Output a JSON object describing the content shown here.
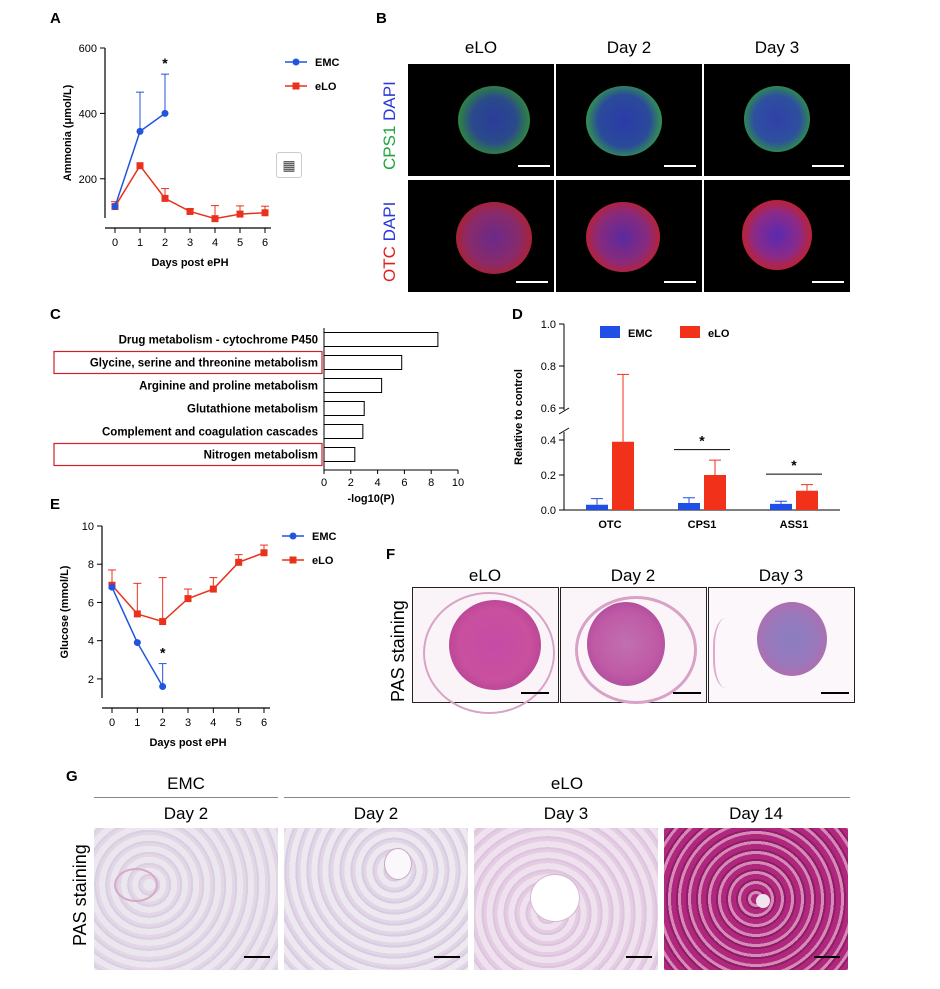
{
  "panelA": {
    "label": "A",
    "ylabel": "Ammonia (μmol/L)",
    "xlabel": "Days post ePH",
    "star": "*",
    "legend": [
      "EMC",
      "eLO"
    ]
  },
  "panelB": {
    "label": "B",
    "columns": [
      "eLO",
      "Day 2",
      "Day 3"
    ],
    "row1": {
      "stain1": "CPS1",
      "stain2": "DAPI"
    },
    "row2": {
      "stain1": "OTC",
      "stain2": "DAPI"
    }
  },
  "panelC": {
    "label": "C",
    "xlabel": "-log10(P)"
  },
  "panelD": {
    "label": "D",
    "ylabel": "Relative to control",
    "legend": [
      "EMC",
      "eLO"
    ],
    "star": "*"
  },
  "panelE": {
    "label": "E",
    "ylabel": "Glucose (mmol/L)",
    "xlabel": "Days post ePH",
    "star": "*",
    "legend": [
      "EMC",
      "eLO"
    ]
  },
  "panelF": {
    "label": "F",
    "columns": [
      "eLO",
      "Day 2",
      "Day 3"
    ],
    "rowlabel": "PAS staining"
  },
  "panelG": {
    "label": "G",
    "group1": "EMC",
    "group2": "eLO",
    "columns": [
      "Day 2",
      "Day 2",
      "Day 3",
      "Day 14"
    ],
    "rowlabel": "PAS staining"
  },
  "chart_data": [
    {
      "id": "A",
      "type": "line",
      "x": [
        0,
        1,
        2,
        3,
        4,
        5,
        6
      ],
      "ylim": [
        80,
        600
      ],
      "yticks": [
        200,
        400,
        600
      ],
      "series": [
        {
          "name": "EMC",
          "color": "#2255dd",
          "marker": "circle",
          "x": [
            0,
            1,
            2
          ],
          "values": [
            115,
            345,
            400
          ],
          "err": [
            0,
            120,
            120
          ]
        },
        {
          "name": "eLO",
          "color": "#e8321e",
          "marker": "square",
          "x": [
            0,
            1,
            2,
            3,
            4,
            5,
            6
          ],
          "values": [
            115,
            240,
            140,
            100,
            78,
            92,
            96
          ],
          "err": [
            15,
            0,
            30,
            8,
            40,
            25,
            20
          ]
        }
      ]
    },
    {
      "id": "C",
      "type": "bar",
      "orientation": "horizontal",
      "categories": [
        "Drug metabolism - cytochrome P450",
        "Glycine, serine and threonine metabolism",
        "Arginine and proline metabolism",
        "Glutathione metabolism",
        "Complement and coagulation cascades",
        "Nitrogen metabolism"
      ],
      "values": [
        8.5,
        5.8,
        4.3,
        3.0,
        2.9,
        2.3
      ],
      "highlighted": [
        "Glycine, serine and threonine metabolism",
        "Nitrogen metabolism"
      ],
      "xlim": [
        0,
        10
      ],
      "xticks": [
        0,
        2,
        4,
        6,
        8,
        10
      ]
    },
    {
      "id": "D",
      "type": "bar",
      "categories": [
        "OTC",
        "CPS1",
        "ASS1"
      ],
      "yticks_lower": [
        0.0,
        0.2,
        0.4
      ],
      "yticks_upper": [
        0.6,
        0.8,
        1.0
      ],
      "axis_break": [
        0.45,
        0.6
      ],
      "series": [
        {
          "name": "EMC",
          "color": "#1f4fe6",
          "values": [
            0.03,
            0.04,
            0.035
          ],
          "err": [
            0.035,
            0.03,
            0.015
          ]
        },
        {
          "name": "eLO",
          "color": "#f2311a",
          "values": [
            0.39,
            0.2,
            0.11
          ],
          "err": [
            0.37,
            0.085,
            0.035
          ]
        }
      ]
    },
    {
      "id": "E",
      "type": "line",
      "x": [
        0,
        1,
        2,
        3,
        4,
        5,
        6
      ],
      "ylim": [
        1,
        10
      ],
      "yticks": [
        2,
        4,
        6,
        8,
        10
      ],
      "series": [
        {
          "name": "EMC",
          "color": "#2255dd",
          "marker": "circle",
          "x": [
            0,
            1,
            2
          ],
          "values": [
            6.8,
            3.9,
            1.6
          ],
          "err": [
            0,
            0,
            1.2
          ]
        },
        {
          "name": "eLO",
          "color": "#e8321e",
          "marker": "square",
          "x": [
            0,
            1,
            2,
            3,
            4,
            5,
            6
          ],
          "values": [
            6.9,
            5.4,
            5.0,
            6.2,
            6.7,
            8.1,
            8.6
          ],
          "err": [
            0.8,
            1.6,
            2.3,
            0.5,
            0.6,
            0.4,
            0.4
          ]
        }
      ]
    }
  ]
}
